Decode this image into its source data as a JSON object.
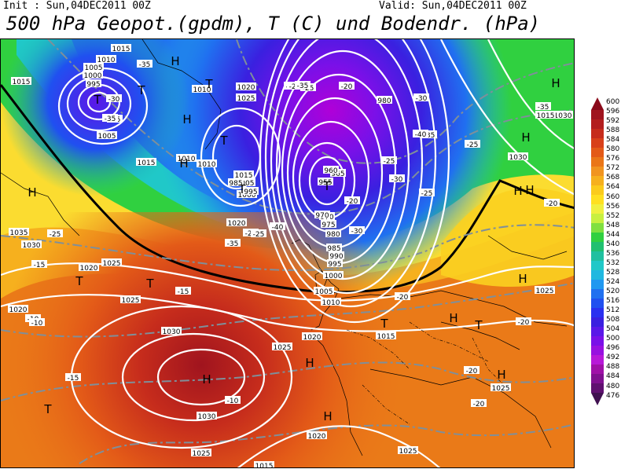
{
  "header": {
    "init": "Init : Sun,04DEC2011 00Z",
    "valid": "Valid: Sun,04DEC2011 00Z",
    "title": "500 hPa Geopot.(gpdm), T (C) und Bodendr. (hPa)"
  },
  "map": {
    "colors": {
      "frame": "#000000",
      "isobar": "#ffffff",
      "front": "#000000",
      "isotherm": "#7f8f9a"
    },
    "pressure_labels": [
      "1015",
      "1010",
      "1005",
      "1000",
      "995",
      "1015",
      "1020",
      "1025",
      "1010",
      "1015",
      "1010",
      "1005",
      "1010",
      "1015",
      "1005",
      "1000",
      "995",
      "985",
      "1020",
      "1035",
      "1030",
      "1025",
      "1020",
      "1020",
      "1025",
      "1030",
      "1030",
      "1025",
      "1025",
      "1020",
      "1015",
      "1010",
      "1005",
      "1000",
      "995",
      "990",
      "985",
      "980",
      "975",
      "970",
      "965",
      "960",
      "955",
      "970",
      "980",
      "1030",
      "1030",
      "1025",
      "1025",
      "1020",
      "1015",
      "1025",
      "1015"
    ],
    "temp_labels": [
      "-40",
      "-35",
      "-30",
      "-35",
      "-35",
      "-30",
      "-25",
      "-20",
      "-25",
      "-30",
      "-35",
      "-40",
      "-35",
      "-30",
      "-25",
      "-20",
      "-35",
      "-20",
      "-15",
      "-25",
      "-10",
      "-15",
      "-10",
      "-10",
      "-15",
      "-20",
      "-20",
      "-20",
      "-25",
      "-40",
      "-20",
      "-25",
      "-35",
      "-25",
      "-20",
      "-30"
    ],
    "centers_H": [
      "H",
      "H",
      "H",
      "H",
      "H",
      "H",
      "H",
      "H",
      "H",
      "H",
      "H",
      "H",
      "H",
      "H"
    ],
    "centers_T": [
      "T",
      "T",
      "T",
      "T",
      "T",
      "T",
      "T",
      "T",
      "T",
      "T",
      "T"
    ]
  },
  "colorbar": {
    "ticks": [
      "600",
      "596",
      "592",
      "588",
      "584",
      "580",
      "576",
      "572",
      "568",
      "564",
      "560",
      "556",
      "552",
      "548",
      "544",
      "540",
      "536",
      "532",
      "528",
      "524",
      "520",
      "516",
      "512",
      "508",
      "504",
      "500",
      "496",
      "492",
      "488",
      "484",
      "480",
      "476"
    ],
    "colors": [
      "#8a0a1a",
      "#a0141e",
      "#b31e1e",
      "#c62c1c",
      "#d8401a",
      "#e35a18",
      "#ea7618",
      "#f19420",
      "#f6b01e",
      "#fbcb1c",
      "#ffe020",
      "#f0f040",
      "#c8f040",
      "#80e040",
      "#30d040",
      "#20c070",
      "#20c0a0",
      "#20c8c8",
      "#20b8e0",
      "#2098f0",
      "#2070f0",
      "#2050f0",
      "#2a30f0",
      "#3a20e0",
      "#5a18e8",
      "#7a10e8",
      "#9810e0",
      "#b818d8",
      "#a010a8",
      "#801090",
      "#601070",
      "#401050"
    ]
  }
}
